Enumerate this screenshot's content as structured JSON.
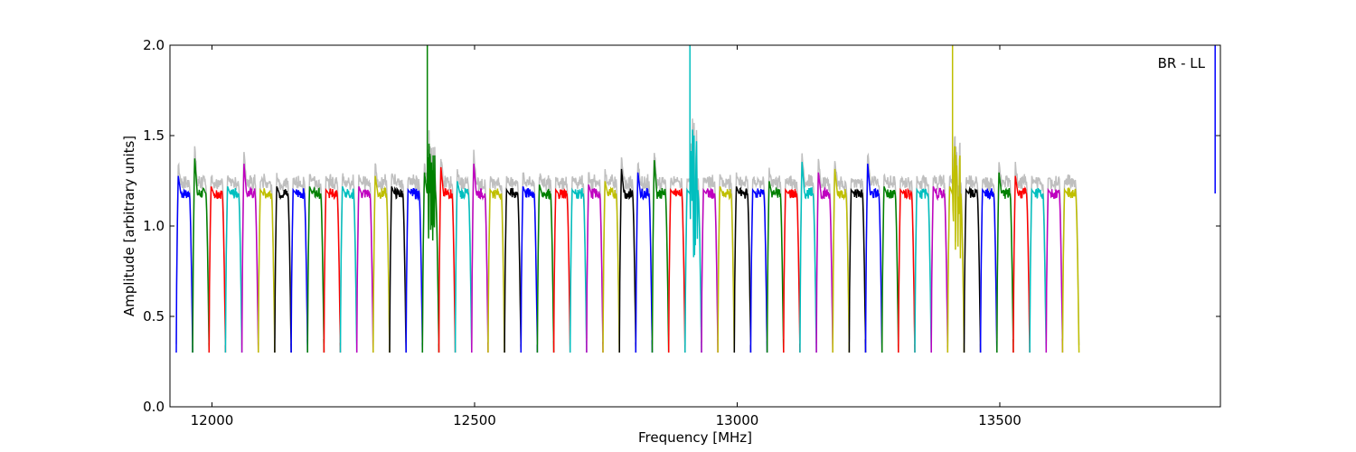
{
  "chart_data": {
    "type": "line",
    "title": "",
    "annotation": "BR - LL",
    "xlabel": "Frequency [MHz]",
    "ylabel": "Amplitude [arbitrary units]",
    "xlim": [
      11920,
      13920
    ],
    "ylim": [
      0.0,
      2.0
    ],
    "xticks": [
      12000,
      12500,
      13000,
      13500
    ],
    "yticks": [
      0.0,
      0.5,
      1.0,
      1.5,
      2.0
    ],
    "xtick_labels": [
      "12000",
      "12500",
      "13000",
      "13500"
    ],
    "ytick_labels": [
      "0.0",
      "0.5",
      "1.0",
      "1.5",
      "2.0"
    ],
    "grid": false,
    "background_series": {
      "color": "#bfbfbf",
      "description_visible": false
    },
    "segment_width_mhz": 31.25,
    "segment_start_mhz": 11932,
    "color_cycle": [
      "#0000ff",
      "#008000",
      "#ff0000",
      "#00bfbf",
      "#bf00bf",
      "#bfbf00",
      "#000000"
    ],
    "segment_peaks": [
      1.28,
      1.38,
      1.22,
      1.22,
      1.35,
      1.2,
      1.22,
      1.2,
      1.22,
      1.2,
      1.22,
      1.22,
      1.28,
      1.22,
      1.2,
      1.3,
      1.33,
      1.25,
      1.35,
      1.2,
      1.2,
      1.22,
      1.23,
      1.2,
      1.2,
      1.23,
      1.25,
      1.32,
      1.3,
      1.37,
      1.2,
      1.2,
      1.2,
      1.22,
      1.22,
      1.2,
      1.25,
      1.2,
      1.36,
      1.3,
      1.32,
      1.2,
      1.35,
      1.22,
      1.2,
      1.2,
      1.22,
      1.22,
      1.2,
      1.2,
      1.3,
      1.28,
      1.2,
      1.2,
      1.2
    ],
    "spikes": [
      {
        "x": 12410,
        "y": 2.0,
        "color": "#008000"
      },
      {
        "x": 12910,
        "y": 2.0,
        "color": "#00bfbf"
      },
      {
        "x": 13410,
        "y": 2.0,
        "color": "#bfbf00"
      },
      {
        "x": 13910,
        "y": 2.0,
        "color": "#0000ff"
      }
    ],
    "trough_level": 0.28,
    "plateau_level": 1.18
  }
}
